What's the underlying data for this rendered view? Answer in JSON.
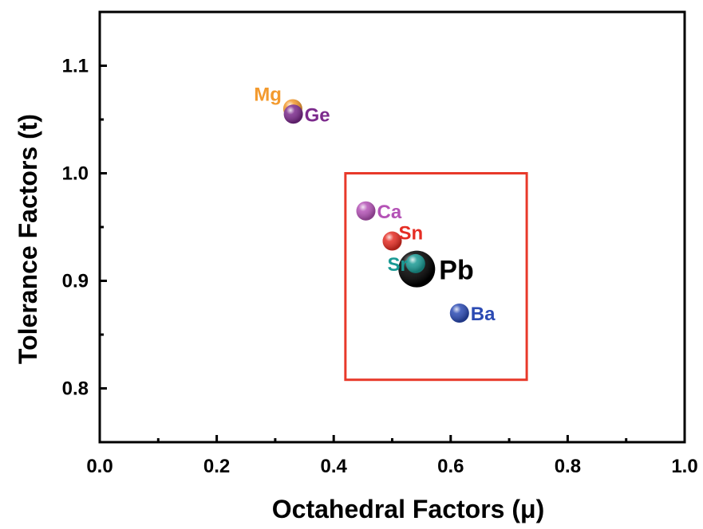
{
  "chart_data": {
    "type": "scatter",
    "title": "",
    "xlabel": "Octahedral Factors (μ)",
    "ylabel": "Tolerance Factors (t)",
    "xlim": [
      0.0,
      1.0
    ],
    "ylim": [
      0.75,
      1.15
    ],
    "x_ticks": [
      0.0,
      0.2,
      0.4,
      0.6,
      0.8,
      1.0
    ],
    "x_tick_labels": [
      "0.0",
      "0.2",
      "0.4",
      "0.6",
      "0.8",
      "1.0"
    ],
    "y_ticks": [
      0.8,
      0.9,
      1.0,
      1.1
    ],
    "y_tick_labels": [
      "0.8",
      "0.9",
      "1.0",
      "1.1"
    ],
    "grid": false,
    "legend": "none",
    "highlight_box": {
      "x_range": [
        0.42,
        0.73
      ],
      "y_range": [
        0.808,
        1.0
      ],
      "color": "#e8392a"
    },
    "points": [
      {
        "label": "Mg",
        "x": 0.33,
        "y": 1.06,
        "color": "#f39a2e",
        "label_color": "#f39a2e",
        "size": "small",
        "label_side": "left-up"
      },
      {
        "label": "Ge",
        "x": 0.331,
        "y": 1.055,
        "color": "#7b2a8c",
        "label_color": "#7b2a8c",
        "size": "small",
        "label_side": "right"
      },
      {
        "label": "Ca",
        "x": 0.455,
        "y": 0.965,
        "color": "#b452b6",
        "label_color": "#b452b6",
        "size": "small",
        "label_side": "right"
      },
      {
        "label": "Sn",
        "x": 0.5,
        "y": 0.937,
        "color": "#e52d24",
        "label_color": "#e52d24",
        "size": "small",
        "label_side": "right-up"
      },
      {
        "label": "Pb",
        "x": 0.542,
        "y": 0.911,
        "color": "#000000",
        "label_color": "#000000",
        "size": "large",
        "label_side": "right"
      },
      {
        "label": "Sr",
        "x": 0.54,
        "y": 0.916,
        "color": "#1a9a94",
        "label_color": "#1a9a94",
        "size": "small",
        "label_side": "left"
      },
      {
        "label": "Ba",
        "x": 0.615,
        "y": 0.87,
        "color": "#2b4ab3",
        "label_color": "#2b4ab3",
        "size": "small",
        "label_side": "right"
      }
    ]
  }
}
